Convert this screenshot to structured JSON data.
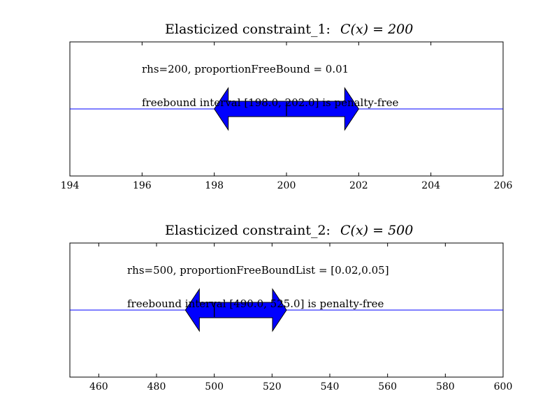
{
  "chart_data": [
    {
      "type": "line",
      "title": "Elasticized constraint_1:",
      "title_math": "C(x) = 200",
      "annotations": [
        "rhs=200, proportionFreeBound = 0.01",
        "freebound interval [198.0, 202.0] is penalty-free"
      ],
      "xlim": [
        194,
        206
      ],
      "xticks": [
        194,
        196,
        198,
        200,
        202,
        204,
        206
      ],
      "ylim": [
        0,
        1
      ],
      "line_y": 0.5,
      "rhs": 200,
      "interval": [
        198.0,
        202.0
      ],
      "grid": false
    },
    {
      "type": "line",
      "title": "Elasticized constraint_2:",
      "title_math": "C(x) = 500",
      "annotations": [
        "rhs=500, proportionFreeBoundList = [0.02,0.05]",
        "freebound interval [490.0, 525.0] is penalty-free"
      ],
      "xlim": [
        450,
        600
      ],
      "xticks": [
        460,
        480,
        500,
        520,
        540,
        560,
        580,
        600
      ],
      "ylim": [
        0,
        1
      ],
      "line_y": 0.5,
      "rhs": 500,
      "interval": [
        490.0,
        525.0
      ],
      "grid": false
    }
  ],
  "colors": {
    "line": "#0000ff",
    "arrow_fill": "#0000ff",
    "arrow_edge": "#000000",
    "frame": "#000000"
  }
}
